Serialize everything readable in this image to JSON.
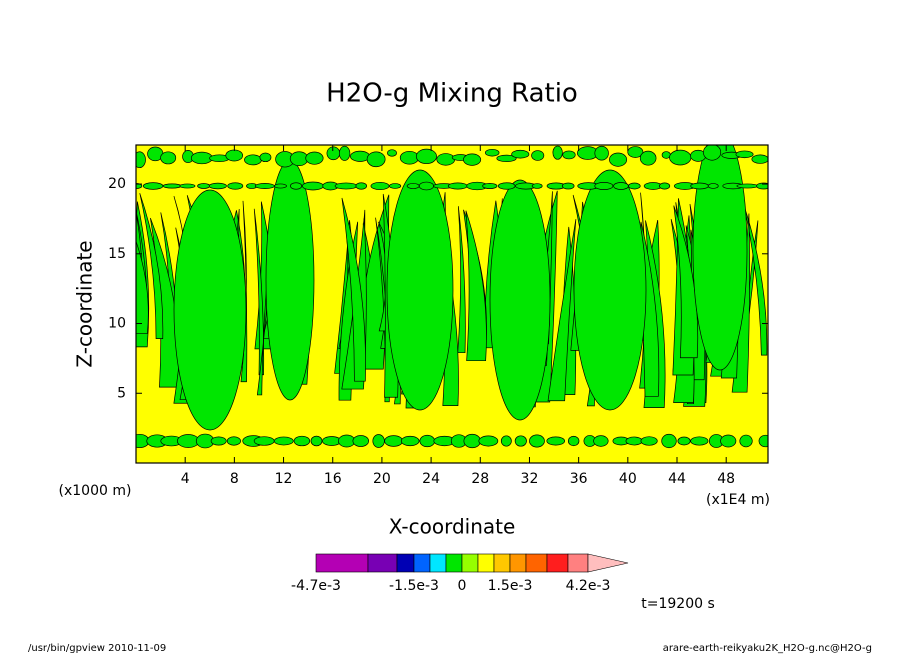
{
  "chart_data": {
    "type": "contour",
    "title": "H2O-g Mixing Ratio",
    "x_label": "X-coordinate",
    "y_label": "Z-coordinate",
    "x_unit": "(x1E4 m)",
    "y_unit": "(x1000 m)",
    "xlim": [
      0,
      51.4
    ],
    "xticks": [
      4,
      8,
      12,
      16,
      20,
      24,
      28,
      32,
      36,
      40,
      44,
      48
    ],
    "ylim": [
      0,
      22.8
    ],
    "yticks": [
      5,
      10,
      15,
      20
    ],
    "field_colors": [
      "#ffff00",
      "#00e600"
    ],
    "time_label": "t=19200 s",
    "footer_left": "/usr/bin/gpview  2010-11-09",
    "footer_right": "arare-earth-reikyaku2K_H2O-g.nc@H2O-g",
    "colorbar": {
      "colors": [
        "#b400b4",
        "#7800b4",
        "#0000b4",
        "#0064ff",
        "#00e6ff",
        "#00e600",
        "#96ff00",
        "#ffff00",
        "#ffc800",
        "#ff9600",
        "#ff6400",
        "#ff1e1e",
        "#ff8080",
        "#ffbebe"
      ],
      "ticks": [
        {
          "value": -0.0047,
          "label": "-4.7e-3"
        },
        {
          "value": -0.0015,
          "label": "-1.5e-3"
        },
        0,
        {
          "value": 0.0015,
          "label": "1.5e-3"
        },
        {
          "value": 0.0042,
          "label": "4.2e-3"
        }
      ]
    }
  }
}
